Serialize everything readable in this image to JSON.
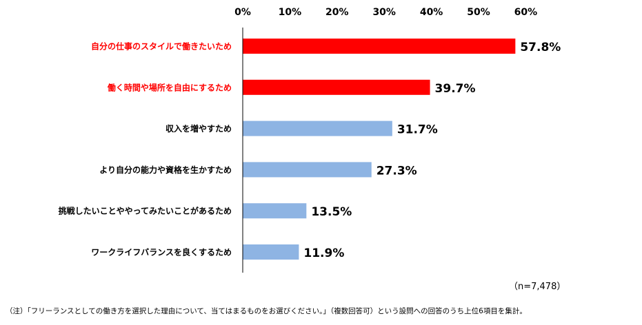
{
  "chart_data": {
    "type": "bar",
    "orientation": "horizontal",
    "categories": [
      "自分の仕事のスタイルで働きたいため",
      "働く時間や場所を自由にするため",
      "収入を増やすため",
      "より自分の能力や資格を生かすため",
      "挑戦したいことややってみたいことがあるため",
      "ワークライフバランスを良くするため"
    ],
    "values": [
      57.8,
      39.7,
      31.7,
      27.3,
      13.5,
      11.9
    ],
    "value_labels": [
      "57.8%",
      "39.7%",
      "31.7%",
      "27.3%",
      "13.5%",
      "11.9%"
    ],
    "highlight": [
      true,
      true,
      false,
      false,
      false,
      false
    ],
    "xlim": [
      0,
      60
    ],
    "xticks": [
      "0%",
      "10%",
      "20%",
      "30%",
      "40%",
      "50%",
      "60%"
    ],
    "x_axis_position": "top",
    "grid": false,
    "colors": {
      "highlight_bar": "#ff0000",
      "normal_bar": "#8eb4e3",
      "highlight_label": "#ff0000",
      "normal_label": "#000000",
      "axis": "#000000"
    }
  },
  "notes": {
    "sample_size": "（n=7,478）",
    "footnote": "（注）「フリーランスとしての働き方を選択した理由について、当てはまるものをお選びください。」（複数回答可）という設問への回答のうち上位6項目を集計。"
  }
}
